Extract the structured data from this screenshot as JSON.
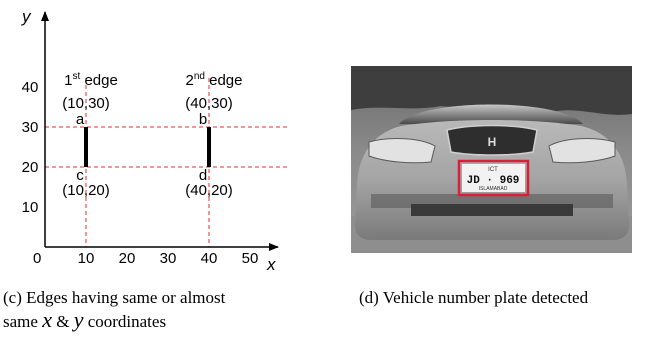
{
  "chart_data": {
    "type": "diagram",
    "axes": {
      "x_label": "x",
      "y_label": "y",
      "xlim": [
        0,
        60
      ],
      "ylim": [
        0,
        50
      ]
    },
    "x_ticks": [
      "10",
      "20",
      "30",
      "40",
      "50"
    ],
    "x_tick_values": [
      10,
      20,
      30,
      40,
      50
    ],
    "y_ticks": [
      "10",
      "20",
      "30",
      "40"
    ],
    "y_tick_values": [
      10,
      20,
      30,
      40
    ],
    "origin_label": "0",
    "edges": [
      {
        "name_base": "1",
        "name_sup": "st",
        "name_rest": " edge",
        "x": 10,
        "y_start": 20,
        "y_end": 30,
        "top_point": {
          "letter": "a",
          "label": "(10,30)"
        },
        "bottom_point": {
          "letter": "c",
          "label": "(10,20)"
        }
      },
      {
        "name_base": "2",
        "name_sup": "nd",
        "name_rest": " edge",
        "x": 40,
        "y_start": 20,
        "y_end": 30,
        "top_point": {
          "letter": "b",
          "label": "(40,30)"
        },
        "bottom_point": {
          "letter": "d",
          "label": "(40,20)"
        }
      }
    ],
    "guide_lines_y": [
      20,
      30
    ],
    "guide_lines_x": [
      10,
      40
    ],
    "guide_color": "#e03030",
    "edge_color": "#000000"
  },
  "photo": {
    "plate_line1": "ICT",
    "plate_line2": "JD · 969",
    "plate_line3": "ISLAMABAD",
    "detection_color": "#d8203a"
  },
  "captions": {
    "c_line1": "(c) Edges having same or almost",
    "c_line2_pre": "same ",
    "c_x": "x",
    "c_amp": " & ",
    "c_y": "y",
    "c_line2_post": " coordinates",
    "d": "(d) Vehicle number plate detected"
  }
}
